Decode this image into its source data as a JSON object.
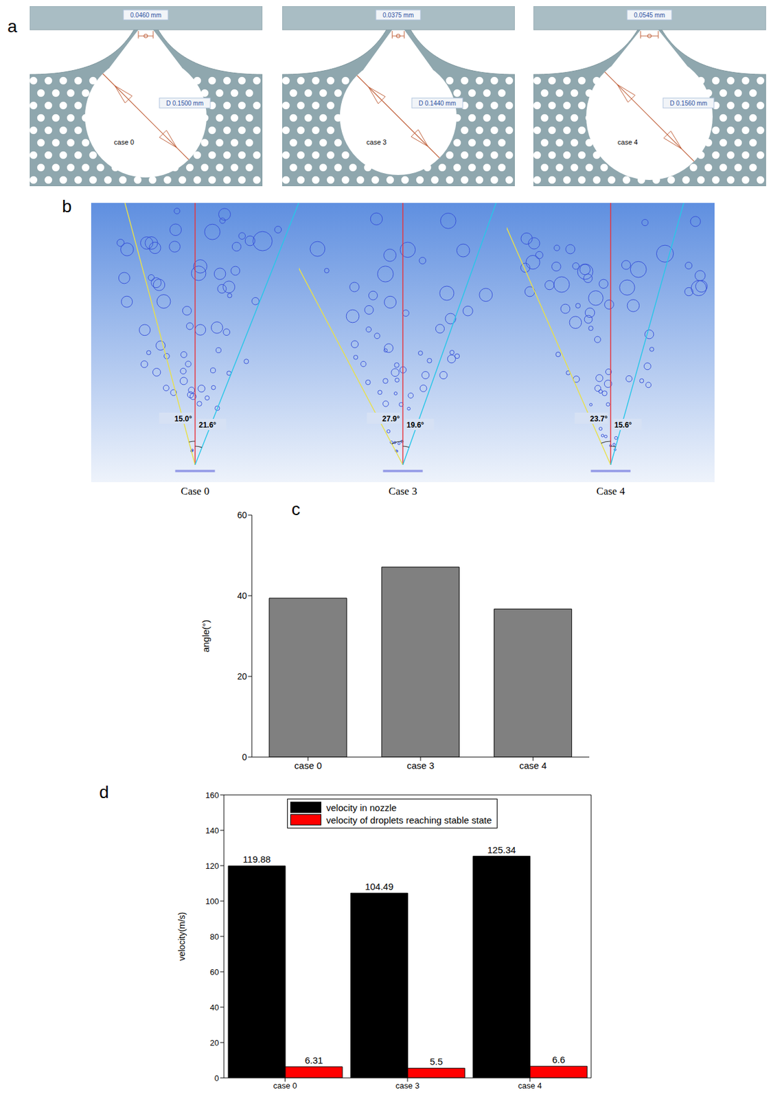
{
  "panel_letters": [
    "a",
    "b",
    "c",
    "d"
  ],
  "geometry": [
    {
      "case": "case 0",
      "outlet_width": "0.0460 mm",
      "chamber_diameter": "D 0.1500 mm"
    },
    {
      "case": "case 3",
      "outlet_width": "0.0375 mm",
      "chamber_diameter": "D 0.1440 mm"
    },
    {
      "case": "case 4",
      "outlet_width": "0.0545 mm",
      "chamber_diameter": "D 0.1560 mm"
    }
  ],
  "spray": [
    {
      "caption": "Case 0",
      "left_angle": "15.0°",
      "right_angle": "21.6°"
    },
    {
      "caption": "Case 3",
      "left_angle": "27.9°",
      "right_angle": "19.6°"
    },
    {
      "caption": "Case 4",
      "left_angle": "23.7°",
      "right_angle": "15.6°"
    }
  ],
  "chart_data": [
    {
      "type": "bar",
      "ylabel": "angle(°)",
      "categories": [
        "case 0",
        "case 3",
        "case 4"
      ],
      "values": [
        39.4,
        47.1,
        36.7
      ],
      "color": "#808080",
      "ylim": [
        0,
        60
      ],
      "yticks": [
        0,
        20,
        40,
        60
      ],
      "grid": false
    },
    {
      "type": "bar",
      "ylabel": "velocity(m/s)",
      "categories": [
        "case 0",
        "case 3",
        "case 4"
      ],
      "series": [
        {
          "name": "velocity in nozzle",
          "color": "#000000",
          "values": [
            119.88,
            104.49,
            125.34
          ]
        },
        {
          "name": "velocity of droplets reaching stable state",
          "color": "#ff0000",
          "values": [
            6.31,
            5.5,
            6.6
          ]
        }
      ],
      "ylim": [
        0,
        160
      ],
      "yticks": [
        0,
        20,
        40,
        60,
        80,
        100,
        120,
        140,
        160
      ],
      "grid": false,
      "data_labels": true,
      "legend": "top"
    }
  ]
}
